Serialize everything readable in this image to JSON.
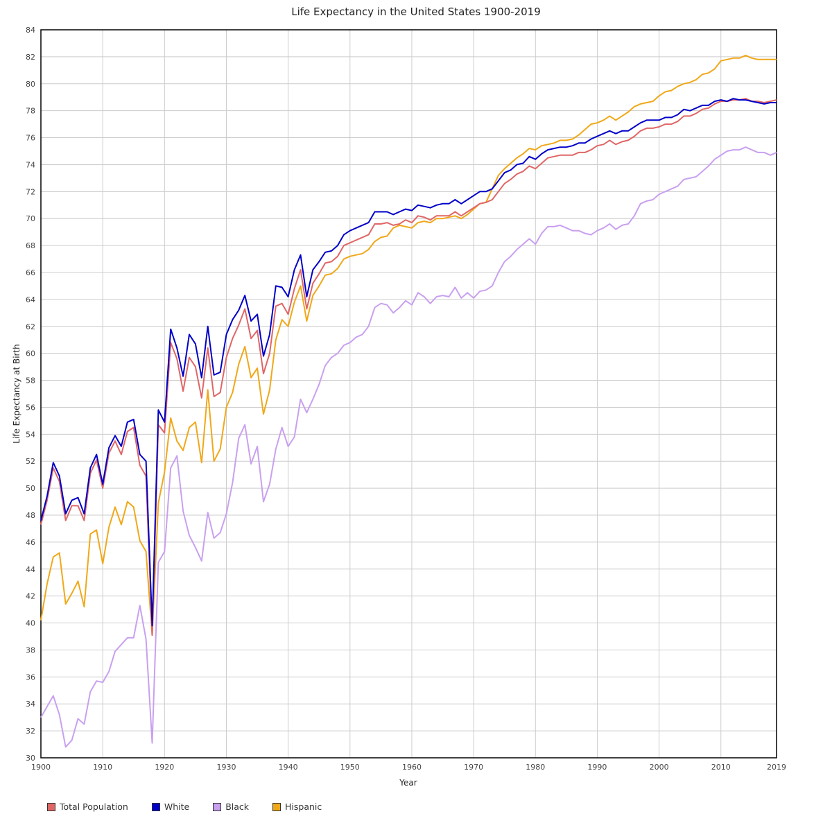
{
  "chart_data": {
    "type": "line",
    "title": "Life Expectancy in the United States 1900-2019",
    "xlabel": "Year",
    "ylabel": "Life Expectancy at Birth",
    "xlim": [
      1900,
      2019
    ],
    "ylim": [
      30,
      84
    ],
    "x_ticks": [
      1900,
      1910,
      1920,
      1930,
      1940,
      1950,
      1960,
      1970,
      1980,
      1990,
      2000,
      2010,
      2019
    ],
    "y_ticks": [
      30,
      32,
      34,
      36,
      38,
      40,
      42,
      44,
      46,
      48,
      50,
      52,
      54,
      56,
      58,
      60,
      62,
      64,
      66,
      68,
      70,
      72,
      74,
      76,
      78,
      80,
      82,
      84
    ],
    "grid": true,
    "legend_position": "bottom-left",
    "x": [
      1900,
      1901,
      1902,
      1903,
      1904,
      1905,
      1906,
      1907,
      1908,
      1909,
      1910,
      1911,
      1912,
      1913,
      1914,
      1915,
      1916,
      1917,
      1918,
      1919,
      1920,
      1921,
      1922,
      1923,
      1924,
      1925,
      1926,
      1927,
      1928,
      1929,
      1930,
      1931,
      1932,
      1933,
      1934,
      1935,
      1936,
      1937,
      1938,
      1939,
      1940,
      1941,
      1942,
      1943,
      1944,
      1945,
      1946,
      1947,
      1948,
      1949,
      1950,
      1951,
      1952,
      1953,
      1954,
      1955,
      1956,
      1957,
      1958,
      1959,
      1960,
      1961,
      1962,
      1963,
      1964,
      1965,
      1966,
      1967,
      1968,
      1969,
      1970,
      1971,
      1972,
      1973,
      1974,
      1975,
      1976,
      1977,
      1978,
      1979,
      1980,
      1981,
      1982,
      1983,
      1984,
      1985,
      1986,
      1987,
      1988,
      1989,
      1990,
      1991,
      1992,
      1993,
      1994,
      1995,
      1996,
      1997,
      1998,
      1999,
      2000,
      2001,
      2002,
      2003,
      2004,
      2005,
      2006,
      2007,
      2008,
      2009,
      2010,
      2011,
      2012,
      2013,
      2014,
      2015,
      2016,
      2017,
      2018,
      2019
    ],
    "series": [
      {
        "name": "Total Population",
        "color": "#e06666",
        "values": [
          47.3,
          49.1,
          51.5,
          50.5,
          47.6,
          48.7,
          48.7,
          47.6,
          51.1,
          52.1,
          50.0,
          52.6,
          53.5,
          52.5,
          54.2,
          54.5,
          51.7,
          50.9,
          39.1,
          54.7,
          54.1,
          60.8,
          59.6,
          57.2,
          59.7,
          59.0,
          56.7,
          60.4,
          56.8,
          57.1,
          59.7,
          61.1,
          62.1,
          63.3,
          61.1,
          61.7,
          58.5,
          60.0,
          63.5,
          63.7,
          62.9,
          64.8,
          66.2,
          63.3,
          65.2,
          65.9,
          66.7,
          66.8,
          67.2,
          68.0,
          68.2,
          68.4,
          68.6,
          68.8,
          69.6,
          69.6,
          69.7,
          69.5,
          69.6,
          69.9,
          69.7,
          70.2,
          70.1,
          69.9,
          70.2,
          70.2,
          70.2,
          70.5,
          70.2,
          70.5,
          70.8,
          71.1,
          71.2,
          71.4,
          72.0,
          72.6,
          72.9,
          73.3,
          73.5,
          73.9,
          73.7,
          74.1,
          74.5,
          74.6,
          74.7,
          74.7,
          74.7,
          74.9,
          74.9,
          75.1,
          75.4,
          75.5,
          75.8,
          75.5,
          75.7,
          75.8,
          76.1,
          76.5,
          76.7,
          76.7,
          76.8,
          77.0,
          77.0,
          77.2,
          77.6,
          77.6,
          77.8,
          78.1,
          78.2,
          78.5,
          78.7,
          78.7,
          78.8,
          78.8,
          78.9,
          78.7,
          78.7,
          78.6,
          78.7,
          78.8
        ]
      },
      {
        "name": "White",
        "color": "#0000c8",
        "values": [
          47.6,
          49.4,
          51.9,
          50.9,
          48.1,
          49.1,
          49.3,
          48.1,
          51.5,
          52.5,
          50.3,
          53.0,
          53.9,
          53.1,
          54.9,
          55.1,
          52.5,
          52.0,
          39.8,
          55.8,
          54.9,
          61.8,
          60.4,
          58.3,
          61.4,
          60.7,
          58.2,
          62.0,
          58.4,
          58.6,
          61.4,
          62.5,
          63.2,
          64.3,
          62.4,
          62.9,
          59.8,
          61.4,
          65.0,
          64.9,
          64.2,
          66.2,
          67.3,
          64.2,
          66.2,
          66.8,
          67.5,
          67.6,
          68.0,
          68.8,
          69.1,
          69.3,
          69.5,
          69.7,
          70.5,
          70.5,
          70.5,
          70.3,
          70.5,
          70.7,
          70.6,
          71.0,
          70.9,
          70.8,
          71.0,
          71.1,
          71.1,
          71.4,
          71.1,
          71.4,
          71.7,
          72.0,
          72.0,
          72.2,
          72.8,
          73.4,
          73.6,
          74.0,
          74.1,
          74.6,
          74.4,
          74.8,
          75.1,
          75.2,
          75.3,
          75.3,
          75.4,
          75.6,
          75.6,
          75.9,
          76.1,
          76.3,
          76.5,
          76.3,
          76.5,
          76.5,
          76.8,
          77.1,
          77.3,
          77.3,
          77.3,
          77.5,
          77.5,
          77.7,
          78.1,
          78.0,
          78.2,
          78.4,
          78.4,
          78.7,
          78.8,
          78.7,
          78.9,
          78.8,
          78.8,
          78.7,
          78.6,
          78.5,
          78.6,
          78.6
        ]
      },
      {
        "name": "Black",
        "color": "#c9a0f0",
        "values": [
          33.0,
          33.8,
          34.6,
          33.2,
          30.8,
          31.3,
          32.9,
          32.5,
          34.9,
          35.7,
          35.6,
          36.4,
          37.9,
          38.4,
          38.9,
          38.9,
          41.3,
          38.8,
          31.1,
          44.5,
          45.3,
          51.5,
          52.4,
          48.3,
          46.5,
          45.6,
          44.6,
          48.2,
          46.3,
          46.7,
          48.1,
          50.4,
          53.7,
          54.7,
          51.8,
          53.1,
          49.0,
          50.3,
          52.9,
          54.5,
          53.1,
          53.8,
          56.6,
          55.6,
          56.6,
          57.7,
          59.1,
          59.7,
          60.0,
          60.6,
          60.8,
          61.2,
          61.4,
          62.0,
          63.4,
          63.7,
          63.6,
          63.0,
          63.4,
          63.9,
          63.6,
          64.5,
          64.2,
          63.7,
          64.2,
          64.3,
          64.2,
          64.9,
          64.1,
          64.5,
          64.1,
          64.6,
          64.7,
          65.0,
          66.0,
          66.8,
          67.2,
          67.7,
          68.1,
          68.5,
          68.1,
          68.9,
          69.4,
          69.4,
          69.5,
          69.3,
          69.1,
          69.1,
          68.9,
          68.8,
          69.1,
          69.3,
          69.6,
          69.2,
          69.5,
          69.6,
          70.2,
          71.1,
          71.3,
          71.4,
          71.8,
          72.0,
          72.2,
          72.4,
          72.9,
          73.0,
          73.1,
          73.5,
          73.9,
          74.4,
          74.7,
          75.0,
          75.1,
          75.1,
          75.3,
          75.1,
          74.9,
          74.9,
          74.7,
          74.9
        ]
      },
      {
        "name": "Hispanic",
        "color": "#f0a818",
        "values": [
          40.2,
          42.9,
          44.9,
          45.2,
          41.4,
          42.2,
          43.1,
          41.2,
          46.6,
          46.9,
          44.4,
          47.1,
          48.6,
          47.3,
          49.0,
          48.6,
          46.1,
          45.3,
          39.1,
          48.9,
          51.2,
          55.2,
          53.5,
          52.8,
          54.5,
          54.9,
          51.9,
          57.3,
          52.0,
          52.9,
          56.0,
          57.1,
          59.2,
          60.5,
          58.2,
          58.9,
          55.5,
          57.3,
          61.0,
          62.5,
          62.0,
          63.8,
          65.0,
          62.4,
          64.3,
          65.0,
          65.8,
          65.9,
          66.3,
          67.0,
          67.2,
          67.3,
          67.4,
          67.7,
          68.3,
          68.6,
          68.7,
          69.3,
          69.5,
          69.4,
          69.3,
          69.7,
          69.8,
          69.7,
          70.0,
          70.0,
          70.1,
          70.2,
          70.0,
          70.3,
          70.7,
          71.1,
          71.2,
          72.2,
          73.2,
          73.7,
          74.1,
          74.5,
          74.8,
          75.2,
          75.1,
          75.4,
          75.5,
          75.6,
          75.8,
          75.8,
          75.9,
          76.2,
          76.6,
          77.0,
          77.1,
          77.3,
          77.6,
          77.3,
          77.6,
          77.9,
          78.3,
          78.5,
          78.6,
          78.7,
          79.1,
          79.4,
          79.5,
          79.8,
          80.0,
          80.1,
          80.3,
          80.7,
          80.8,
          81.1,
          81.7,
          81.8,
          81.9,
          81.9,
          82.1,
          81.9,
          81.8,
          81.8,
          81.8,
          81.8
        ]
      }
    ]
  },
  "legend": {
    "items": [
      {
        "label": "Total Population",
        "color": "#e06666"
      },
      {
        "label": "White",
        "color": "#0000c8"
      },
      {
        "label": "Black",
        "color": "#c9a0f0"
      },
      {
        "label": "Hispanic",
        "color": "#f0a818"
      }
    ]
  }
}
